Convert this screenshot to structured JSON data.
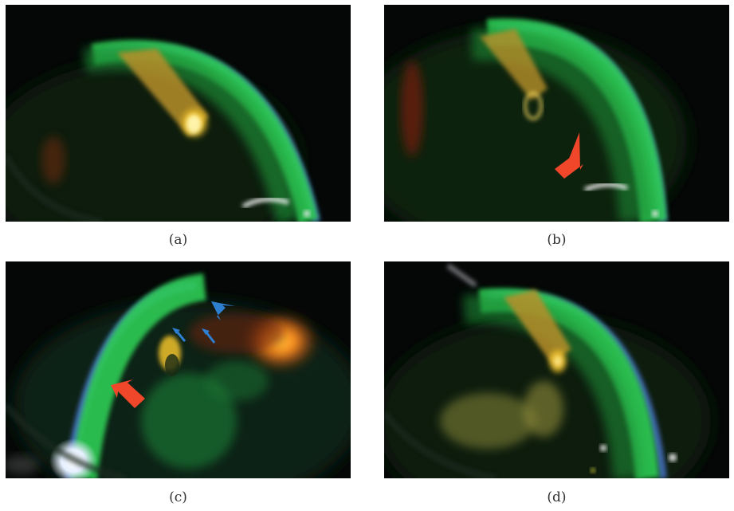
{
  "panels": [
    {
      "id": "a",
      "caption": "(a)",
      "arrows": []
    },
    {
      "id": "b",
      "caption": "(b)",
      "arrows": [
        {
          "color": "red"
        }
      ]
    },
    {
      "id": "c",
      "caption": "(c)",
      "arrows": [
        {
          "color": "red"
        },
        {
          "color": "blue"
        },
        {
          "color": "blue"
        },
        {
          "color": "blue"
        }
      ]
    },
    {
      "id": "d",
      "caption": "(d)",
      "arrows": []
    }
  ],
  "colors": {
    "background": "#050807",
    "slit_beam_green": "#2ecc55",
    "slit_beam_blue": "#5a8cff",
    "lens_yellow": "#f5c830",
    "reflection_orange": "#ff8a1e",
    "arrow_red": "#f0472b",
    "arrow_blue": "#2f7fd0",
    "caption_text": "#333333"
  }
}
